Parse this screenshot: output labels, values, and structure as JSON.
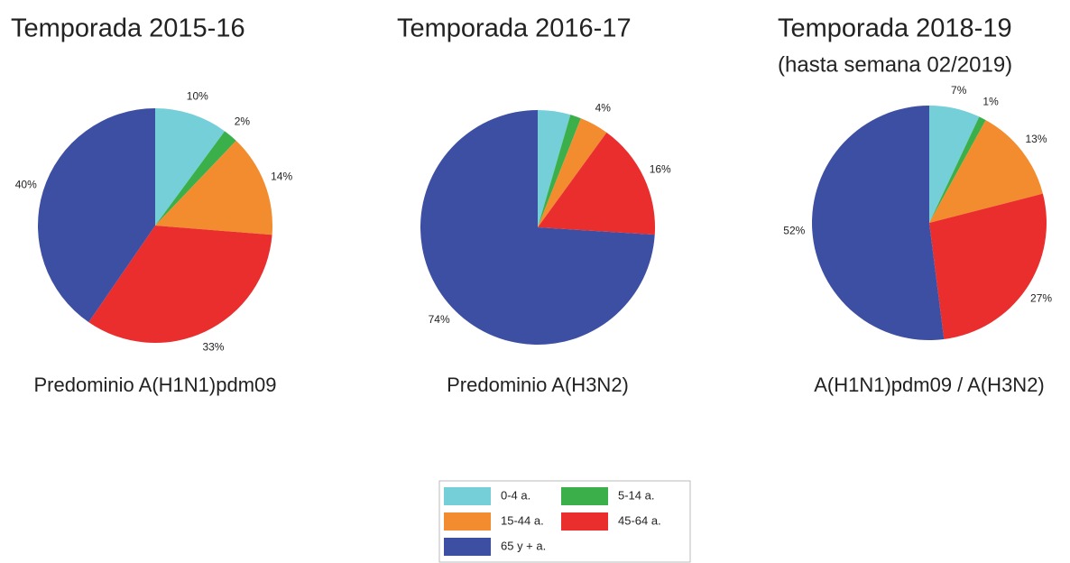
{
  "chart_data": [
    {
      "type": "pie",
      "title": "Temporada 2015-16",
      "caption": "Predominio A(H1N1)pdm09",
      "categories": [
        "0-4 a.",
        "5-14 a.",
        "15-44 a.",
        "45-64 a.",
        "65 y + a."
      ],
      "colors": [
        "#74cfd9",
        "#3bb04a",
        "#f28c2e",
        "#ea2e2e",
        "#3d4fa3"
      ],
      "values": [
        10,
        2,
        14,
        33,
        40
      ],
      "value_labels": [
        "10%",
        "2%",
        "14%",
        "33%",
        "40%"
      ]
    },
    {
      "type": "pie",
      "title": "Temporada 2016-17",
      "caption": "Predominio A(H3N2)",
      "categories": [
        "0-4 a.",
        "5-14 a.",
        "15-44 a.",
        "45-64 a.",
        "65 y + a."
      ],
      "colors": [
        "#74cfd9",
        "#3bb04a",
        "#f28c2e",
        "#ea2e2e",
        "#3d4fa3"
      ],
      "values": [
        4.5,
        1.5,
        4,
        16,
        74
      ],
      "value_labels": [
        null,
        null,
        "4%",
        "16%",
        "74%"
      ]
    },
    {
      "type": "pie",
      "title": "Temporada 2018-19",
      "subtitle": "(hasta semana 02/2019)",
      "caption": "A(H1N1)pdm09 / A(H3N2)",
      "categories": [
        "0-4 a.",
        "5-14 a.",
        "15-44 a.",
        "45-64 a.",
        "65 y + a."
      ],
      "colors": [
        "#74cfd9",
        "#3bb04a",
        "#f28c2e",
        "#ea2e2e",
        "#3d4fa3"
      ],
      "values": [
        7,
        1,
        13,
        27,
        52
      ],
      "value_labels": [
        "7%",
        "1%",
        "13%",
        "27%",
        "52%"
      ]
    }
  ]
}
